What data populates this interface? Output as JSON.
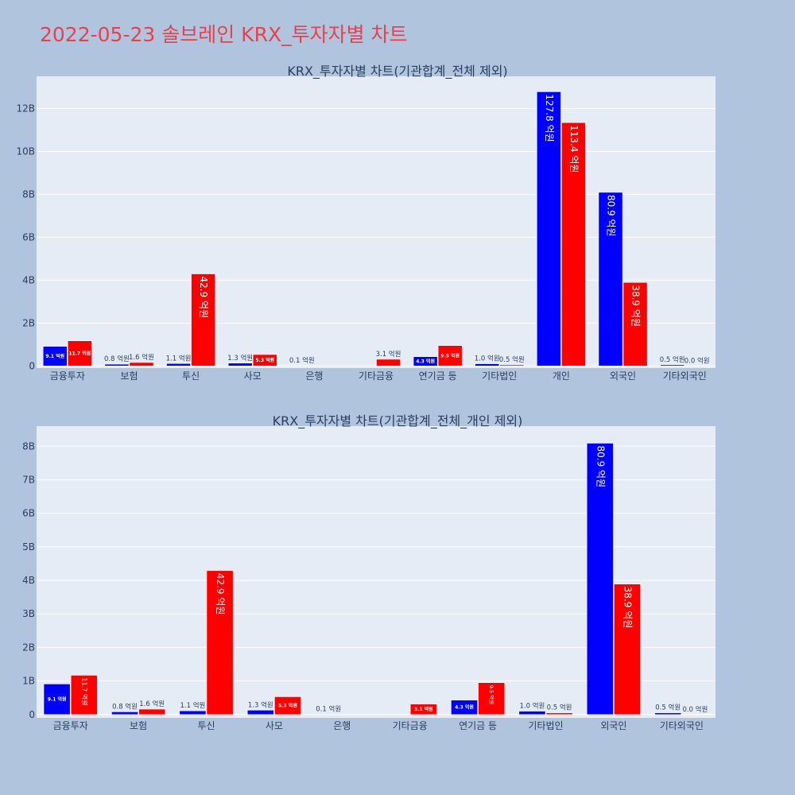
{
  "page": {
    "title": "2022-05-23 솔브레인 KRX_투자자별 차트",
    "background": "#b0c4de",
    "plot_background": "#e5ecf6",
    "title_color": "#e8414d"
  },
  "chart_data": [
    {
      "type": "bar",
      "title": "KRX_투자자별 차트(기관합계_전체 제외)",
      "categories": [
        "금융투자",
        "보험",
        "투신",
        "사모",
        "은행",
        "기타금융",
        "연기금 등",
        "기타법인",
        "개인",
        "외국인",
        "기타외국인"
      ],
      "series": [
        {
          "color": "#0000ff",
          "values": [
            0.91,
            0.08,
            0.11,
            0.13,
            0.01,
            0,
            0.43,
            0.1,
            12.78,
            8.09,
            0.05
          ],
          "labels": [
            "9.1 억원",
            "0.8 억원",
            "1.1 억원",
            "1.3 억원",
            "0.1 억원",
            "",
            "4.3 억원",
            "1.0 억원",
            "127.8 억원",
            "80.9 억원",
            "0.5 억원"
          ]
        },
        {
          "color": "#ff0000",
          "values": [
            1.17,
            0.16,
            4.29,
            0.53,
            0,
            0.31,
            0.95,
            0.05,
            11.34,
            3.89,
            0.0
          ],
          "labels": [
            "11.7 억원",
            "1.6 억원",
            "42.9 억원",
            "5.3 억원",
            "",
            "3.1 억원",
            "9.5 억원",
            "0.5 억원",
            "113.4 억원",
            "38.9 억원",
            "0.0 억원"
          ]
        }
      ],
      "yticks": [
        0,
        2,
        4,
        6,
        8,
        10,
        12
      ],
      "ytick_labels": [
        "0",
        "2B",
        "4B",
        "6B",
        "8B",
        "10B",
        "12B"
      ],
      "ylim": [
        -0.1,
        13.5
      ],
      "grid": true
    },
    {
      "type": "bar",
      "title": "KRX_투자자별 차트(기관합계_전체_개인 제외)",
      "categories": [
        "금융투자",
        "보험",
        "투신",
        "사모",
        "은행",
        "기타금융",
        "연기금 등",
        "기타법인",
        "외국인",
        "기타외국인"
      ],
      "series": [
        {
          "color": "#0000ff",
          "values": [
            0.91,
            0.08,
            0.11,
            0.13,
            0.01,
            0,
            0.43,
            0.1,
            8.09,
            0.05
          ],
          "labels": [
            "9.1 억원",
            "0.8 억원",
            "1.1 억원",
            "1.3 억원",
            "0.1 억원",
            "",
            "4.3 억원",
            "1.0 억원",
            "80.9 억원",
            "0.5 억원"
          ]
        },
        {
          "color": "#ff0000",
          "values": [
            1.17,
            0.16,
            4.29,
            0.53,
            0,
            0.31,
            0.95,
            0.05,
            3.89,
            0.0
          ],
          "labels": [
            "11.7 억원",
            "1.6 억원",
            "42.9 억원",
            "5.3 억원",
            "",
            "3.1 억원",
            "9.5 억원",
            "0.5 억원",
            "38.9 억원",
            "0.0 억원"
          ]
        }
      ],
      "yticks": [
        0,
        1,
        2,
        3,
        4,
        5,
        6,
        7,
        8
      ],
      "ytick_labels": [
        "0",
        "1B",
        "2B",
        "3B",
        "4B",
        "5B",
        "6B",
        "7B",
        "8B"
      ],
      "ylim": [
        -0.1,
        8.6
      ],
      "grid": true
    }
  ]
}
